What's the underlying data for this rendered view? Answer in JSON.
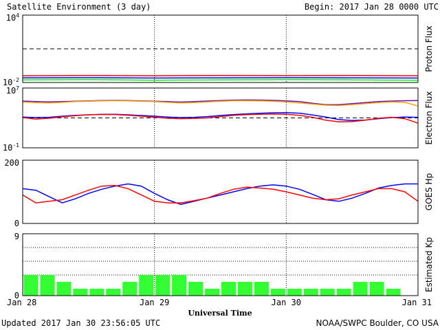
{
  "header": {
    "title": "Satellite Environment (3 day)",
    "begin": "Begin:  2017 Jan 28 0000 UTC"
  },
  "footer": {
    "updated": "Updated 2017 Jan 30 23:56:05 UTC",
    "credit": "NOAA/SWPC Boulder, CO USA"
  },
  "x_axis": {
    "label": "Universal Time",
    "ticks": [
      "Jan 28",
      "Jan 29",
      "Jan 30",
      "Jan 31"
    ]
  },
  "colors": {
    "red": "#ff0000",
    "blue": "#0000ff",
    "green": "#00ff00",
    "orange": "#ffa500",
    "purple": "#6a0dad",
    "bar": "#33ff33",
    "grid": "#000000"
  },
  "chart_data": [
    {
      "type": "line",
      "ylabel": "Proton Flux",
      "scale": "log",
      "ylim": [
        0.01,
        10000
      ],
      "ytick_labels": [
        {
          "base": "10",
          "exp": "4"
        },
        {
          "base": "10",
          "exp": "-2"
        }
      ],
      "threshold": 10,
      "x": [
        0,
        0.5,
        1,
        1.5,
        2,
        2.5,
        3
      ],
      "series": [
        {
          "color": "red",
          "values": [
            0.04,
            0.042,
            0.04,
            0.043,
            0.041,
            0.042,
            0.04
          ]
        },
        {
          "color": "blue",
          "values": [
            0.026,
            0.027,
            0.025,
            0.026,
            0.027,
            0.026,
            0.025
          ]
        },
        {
          "color": "green",
          "values": [
            0.017,
            0.018,
            0.016,
            0.017,
            0.018,
            0.017,
            0.016
          ]
        }
      ]
    },
    {
      "type": "line",
      "ylabel": "Electron Flux",
      "scale": "log",
      "ylim": [
        0.1,
        10000000
      ],
      "ytick_labels": [
        {
          "base": "10",
          "exp": "7"
        },
        {
          "base": "10",
          "exp": "-1"
        }
      ],
      "threshold": 1000,
      "x": [
        0,
        0.1,
        0.2,
        0.3,
        0.4,
        0.5,
        0.6,
        0.7,
        0.8,
        0.9,
        1.0,
        1.1,
        1.2,
        1.3,
        1.4,
        1.5,
        1.6,
        1.7,
        1.8,
        1.9,
        2.0,
        2.1,
        2.2,
        2.3,
        2.4,
        2.5,
        2.6,
        2.7,
        2.8,
        2.9,
        3.0
      ],
      "series": [
        {
          "color": "purple",
          "values": [
            180000,
            150000,
            140000,
            150000,
            170000,
            190000,
            210000,
            220000,
            210000,
            190000,
            170000,
            150000,
            130000,
            150000,
            180000,
            210000,
            240000,
            250000,
            240000,
            220000,
            190000,
            150000,
            90000,
            60000,
            60000,
            80000,
            110000,
            150000,
            180000,
            200000,
            210000
          ]
        },
        {
          "color": "orange",
          "values": [
            130000,
            110000,
            100000,
            120000,
            150000,
            170000,
            190000,
            200000,
            190000,
            170000,
            150000,
            120000,
            100000,
            110000,
            140000,
            170000,
            200000,
            200000,
            190000,
            170000,
            140000,
            100000,
            70000,
            50000,
            45000,
            60000,
            80000,
            110000,
            140000,
            120000,
            40000
          ]
        },
        {
          "color": "blue",
          "values": [
            1300,
            1100,
            1200,
            1700,
            2200,
            2600,
            3000,
            3000,
            2600,
            2100,
            1700,
            1300,
            1100,
            1200,
            1500,
            2100,
            2800,
            3500,
            4200,
            4800,
            5000,
            4300,
            2500,
            1300,
            600,
            450,
            520,
            800,
            1100,
            1300,
            1200
          ]
        },
        {
          "color": "red",
          "values": [
            1100,
            700,
            900,
            1400,
            2000,
            2600,
            2900,
            2800,
            2300,
            1700,
            1200,
            900,
            800,
            850,
            1000,
            1500,
            2200,
            2700,
            3100,
            3300,
            3100,
            2200,
            1200,
            500,
            300,
            320,
            500,
            900,
            1200,
            800,
            200
          ]
        }
      ]
    },
    {
      "type": "line",
      "ylabel": "GOES Hp",
      "scale": "linear",
      "ylim": [
        0,
        200
      ],
      "ytick_labels": [
        {
          "base": "200",
          "exp": ""
        },
        {
          "base": "0",
          "exp": ""
        }
      ],
      "x": [
        0,
        0.1,
        0.2,
        0.3,
        0.4,
        0.5,
        0.6,
        0.7,
        0.8,
        0.9,
        1.0,
        1.1,
        1.2,
        1.3,
        1.4,
        1.5,
        1.6,
        1.7,
        1.8,
        1.9,
        2.0,
        2.1,
        2.2,
        2.3,
        2.4,
        2.5,
        2.6,
        2.7,
        2.8,
        2.9,
        3.0
      ],
      "series": [
        {
          "color": "blue",
          "values": [
            110,
            105,
            85,
            65,
            78,
            95,
            108,
            118,
            125,
            118,
            95,
            75,
            60,
            70,
            80,
            90,
            100,
            110,
            118,
            122,
            118,
            108,
            92,
            75,
            70,
            80,
            95,
            112,
            120,
            125,
            125
          ]
        },
        {
          "color": "red",
          "values": [
            90,
            65,
            70,
            75,
            90,
            105,
            118,
            120,
            110,
            90,
            70,
            65,
            65,
            72,
            80,
            95,
            108,
            115,
            112,
            108,
            100,
            90,
            80,
            75,
            78,
            90,
            100,
            110,
            110,
            100,
            70
          ]
        }
      ]
    },
    {
      "type": "bar",
      "ylabel": "Estimated Kp",
      "ylim": [
        0,
        9
      ],
      "ytick_labels": [
        {
          "base": "9",
          "exp": ""
        },
        {
          "base": "0",
          "exp": ""
        }
      ],
      "bar_width_hours": 3,
      "values": [
        3,
        3,
        2,
        1,
        1,
        1,
        2,
        3,
        3,
        3,
        2,
        1,
        2,
        2,
        2,
        1,
        1,
        1,
        1,
        1,
        2,
        2,
        1,
        0
      ]
    }
  ]
}
